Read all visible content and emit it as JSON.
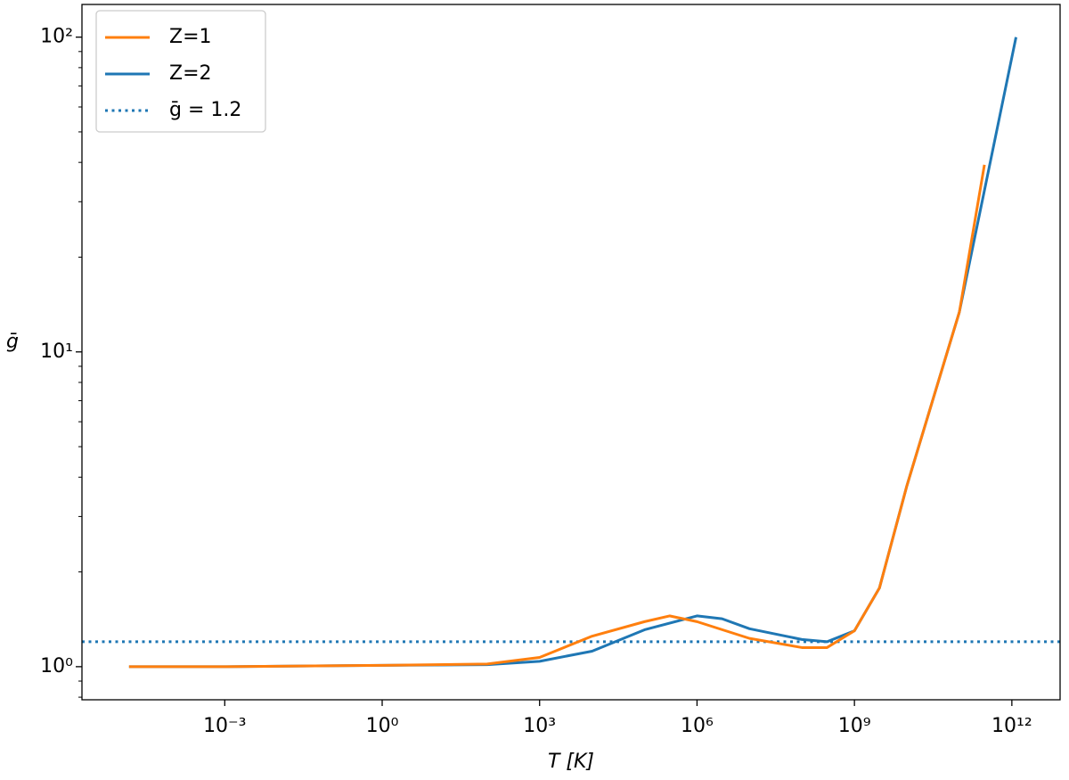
{
  "chart_data": {
    "type": "line",
    "xlabel": "T [K]",
    "ylabel": "ḡ",
    "xscale": "log",
    "yscale": "log",
    "legend": "upper left",
    "xlim": [
      1.9e-06,
      8300000000000.0
    ],
    "ylim": [
      0.785,
      127
    ],
    "xticks": [
      {
        "value": 0.001,
        "label": "10⁻³"
      },
      {
        "value": 1,
        "label": "10⁰"
      },
      {
        "value": 1000,
        "label": "10³"
      },
      {
        "value": 1000000,
        "label": "10⁶"
      },
      {
        "value": 1000000000,
        "label": "10⁹"
      },
      {
        "value": 1000000000000,
        "label": "10¹²"
      }
    ],
    "yticks": [
      {
        "value": 1,
        "label": "10⁰"
      },
      {
        "value": 10,
        "label": "10¹"
      },
      {
        "value": 100,
        "label": "10²"
      }
    ],
    "series": [
      {
        "name": "Z=1",
        "color": "#ff7f0e",
        "x": [
          1.5e-05,
          0.001,
          1,
          100,
          1000,
          10000,
          100000,
          300000,
          1000000,
          10000000,
          100000000,
          300000000,
          1000000000,
          3000000000,
          10000000000,
          100000000000,
          300000000000
        ],
        "values": [
          1.0,
          1.0,
          1.01,
          1.02,
          1.07,
          1.25,
          1.39,
          1.45,
          1.39,
          1.23,
          1.15,
          1.15,
          1.3,
          1.78,
          3.76,
          13.4,
          39.3
        ]
      },
      {
        "name": "Z=2",
        "color": "#1f77b4",
        "x": [
          1.5e-05,
          0.001,
          1,
          100,
          1000,
          10000,
          100000,
          1000000,
          3000000,
          10000000,
          100000000,
          300000000,
          1000000000,
          3000000000,
          10000000000,
          100000000000,
          1200000000000
        ],
        "values": [
          1.0,
          1.0,
          1.01,
          1.015,
          1.04,
          1.12,
          1.31,
          1.45,
          1.42,
          1.32,
          1.22,
          1.2,
          1.3,
          1.78,
          3.76,
          13.4,
          100
        ]
      },
      {
        "name": "ḡ = 1.2",
        "color": "#1f77b4",
        "style": "dotted",
        "y": 1.2
      }
    ]
  }
}
